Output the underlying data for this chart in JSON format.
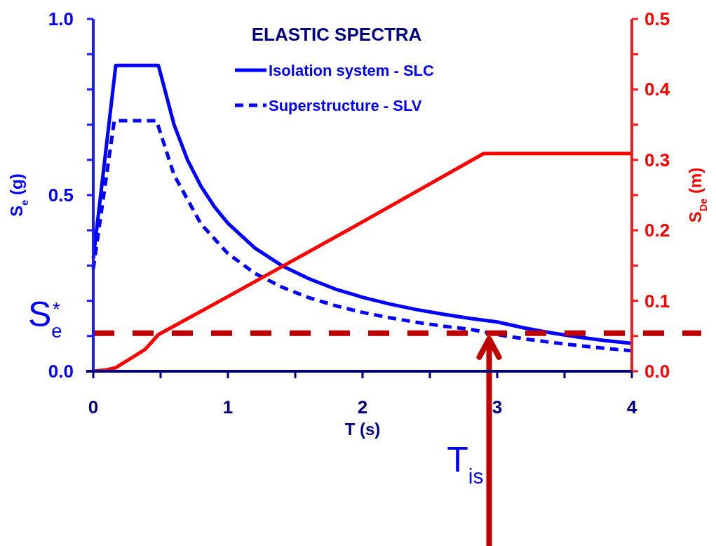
{
  "chart_data": {
    "type": "line",
    "title": "ELASTIC SPECTRA",
    "xlabel": "T (s)",
    "ylabel": "S$_{e}$ (g)",
    "y2label": "S$_{De}$ (m)",
    "xlim": [
      0,
      4
    ],
    "xticks": [
      0,
      {
        "value": 0.5,
        "label": null
      },
      1,
      {
        "value": 1.5,
        "label": null
      },
      2,
      {
        "value": 2.5,
        "label": null
      },
      3,
      {
        "value": 3.5,
        "label": null
      },
      4
    ],
    "ylim": [
      0,
      1
    ],
    "yticks": [
      {
        "value": 0,
        "label": "0.0"
      },
      {
        "value": 0.1,
        "label": null
      },
      {
        "value": 0.2,
        "label": null
      },
      {
        "value": 0.3,
        "label": null
      },
      {
        "value": 0.4,
        "label": null
      },
      0.5,
      {
        "value": 0.6,
        "label": null
      },
      {
        "value": 0.7,
        "label": null
      },
      {
        "value": 0.8,
        "label": null
      },
      {
        "value": 0.9,
        "label": null
      },
      {
        "value": 1,
        "label": "1.0"
      }
    ],
    "y2lim": [
      0,
      0.5
    ],
    "y2ticks": [
      {
        "value": 0,
        "label": "0.0"
      },
      {
        "value": 0.05,
        "label": null
      },
      0.1,
      {
        "value": 0.15,
        "label": null
      },
      0.2,
      {
        "value": 0.25,
        "label": null
      },
      0.3,
      {
        "value": 0.35,
        "label": null
      },
      0.4,
      {
        "value": 0.45,
        "label": null
      },
      0.5
    ],
    "series": [
      {
        "name": "Isolation system - SLC",
        "color": "#0000ff",
        "line_style": "solid",
        "x": [
          0,
          0.167,
          0.484,
          0.6,
          0.7,
          0.8,
          0.9,
          1.0,
          1.2,
          1.4,
          1.6,
          1.8,
          2.0,
          2.2,
          2.4,
          2.6,
          2.8,
          3.0,
          3.2,
          3.4,
          3.6,
          3.8,
          4.0
        ],
        "values": [
          0.32,
          0.868,
          0.868,
          0.7,
          0.6,
          0.525,
          0.467,
          0.42,
          0.35,
          0.3,
          0.263,
          0.233,
          0.21,
          0.191,
          0.175,
          0.162,
          0.15,
          0.14,
          0.123,
          0.109,
          0.097,
          0.087,
          0.079
        ]
      },
      {
        "name": "Superstructure - SLV",
        "color": "#0000ff",
        "line_style": "dashed",
        "x": [
          0,
          0.156,
          0.47,
          0.6,
          0.8,
          1.0,
          1.2,
          1.4,
          1.6,
          1.8,
          2.0,
          2.2,
          2.4,
          2.6,
          2.8,
          3.0,
          3.2,
          3.4,
          3.6,
          3.8,
          4.0
        ],
        "values": [
          0.29,
          0.711,
          0.711,
          0.557,
          0.418,
          0.334,
          0.278,
          0.239,
          0.209,
          0.186,
          0.167,
          0.152,
          0.139,
          0.128,
          0.119,
          0.104,
          0.092,
          0.082,
          0.073,
          0.065,
          0.058
        ]
      },
      {
        "color": "#ff0000",
        "line_style": "solid",
        "axis": "y2",
        "x": [
          0,
          0.1,
          0.167,
          0.26,
          0.385,
          0.484,
          1.0,
          2.0,
          2.9,
          4.0
        ],
        "values": [
          0,
          0.002,
          0.005,
          0.016,
          0.031,
          0.052,
          0.106,
          0.212,
          0.309,
          0.309
        ]
      }
    ],
    "ref_lines": [
      {
        "axis": "y",
        "value": 0.108,
        "label": "S$_{e}$$^{*}$",
        "color": "#c00000",
        "line_style": "dashed"
      },
      {
        "axis": "x",
        "value": 2.94,
        "label": "T$_{is}$",
        "color": "#c00000",
        "line_style": "solid"
      }
    ],
    "legend": "top",
    "marker": "none",
    "grid": false
  }
}
